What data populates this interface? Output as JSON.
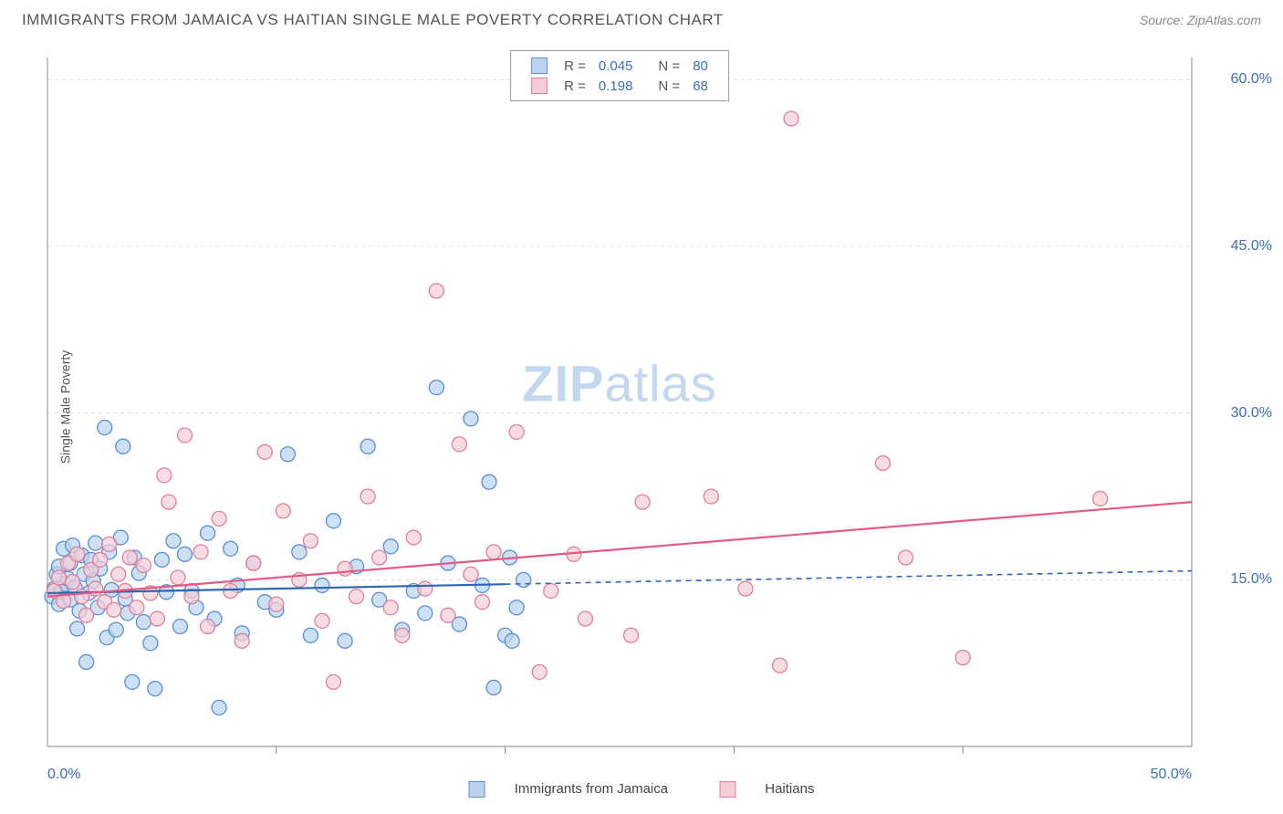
{
  "title": "IMMIGRANTS FROM JAMAICA VS HAITIAN SINGLE MALE POVERTY CORRELATION CHART",
  "source": "Source: ZipAtlas.com",
  "watermark_zip": "ZIP",
  "watermark_atlas": "atlas",
  "ylabel": "Single Male Poverty",
  "chart": {
    "type": "scatter",
    "xlim": [
      0,
      50
    ],
    "ylim": [
      0,
      62
    ],
    "xtick_vals": [
      0,
      50
    ],
    "xtick_labels": [
      "0.0%",
      "50.0%"
    ],
    "xtick_minor": [
      10,
      20,
      30,
      40
    ],
    "ytick_vals": [
      15,
      30,
      45,
      60
    ],
    "ytick_labels": [
      "15.0%",
      "30.0%",
      "45.0%",
      "60.0%"
    ],
    "grid_color": "#dddddd",
    "axis_color": "#888888",
    "marker_radius": 8,
    "marker_stroke_width": 1.3,
    "line_width": 2.2,
    "series": [
      {
        "name": "Immigrants from Jamaica",
        "fill": "#b9d3f0",
        "stroke": "#5a8fd0",
        "line_color": "#2f66b3",
        "R": "0.045",
        "N": "80",
        "trend": {
          "x1": 0,
          "y1": 13.8,
          "x2_solid": 20,
          "y2_solid": 14.6,
          "x2_dash": 50,
          "y2_dash": 15.8
        },
        "points": [
          [
            0.2,
            13.5
          ],
          [
            0.3,
            14.2
          ],
          [
            0.4,
            15.5
          ],
          [
            0.5,
            16.2
          ],
          [
            0.5,
            12.8
          ],
          [
            0.6,
            13.9
          ],
          [
            0.7,
            17.8
          ],
          [
            0.8,
            14.6
          ],
          [
            0.9,
            15.1
          ],
          [
            1.0,
            13.2
          ],
          [
            1.0,
            16.5
          ],
          [
            1.1,
            18.1
          ],
          [
            1.2,
            14.3
          ],
          [
            1.3,
            10.6
          ],
          [
            1.4,
            12.2
          ],
          [
            1.5,
            17.2
          ],
          [
            1.6,
            15.5
          ],
          [
            1.7,
            7.6
          ],
          [
            1.8,
            13.8
          ],
          [
            1.9,
            16.8
          ],
          [
            2.0,
            14.9
          ],
          [
            2.1,
            18.3
          ],
          [
            2.2,
            12.5
          ],
          [
            2.3,
            16.0
          ],
          [
            2.5,
            28.7
          ],
          [
            2.6,
            9.8
          ],
          [
            2.7,
            17.5
          ],
          [
            2.8,
            14.1
          ],
          [
            3.0,
            10.5
          ],
          [
            3.2,
            18.8
          ],
          [
            3.3,
            27.0
          ],
          [
            3.4,
            13.3
          ],
          [
            3.5,
            12.0
          ],
          [
            3.7,
            5.8
          ],
          [
            3.8,
            17.0
          ],
          [
            4.0,
            15.6
          ],
          [
            4.2,
            11.2
          ],
          [
            4.5,
            9.3
          ],
          [
            4.7,
            5.2
          ],
          [
            5.0,
            16.8
          ],
          [
            5.2,
            13.9
          ],
          [
            5.5,
            18.5
          ],
          [
            5.8,
            10.8
          ],
          [
            6.0,
            17.3
          ],
          [
            6.3,
            14.0
          ],
          [
            6.5,
            12.5
          ],
          [
            7.0,
            19.2
          ],
          [
            7.3,
            11.5
          ],
          [
            7.5,
            3.5
          ],
          [
            8.0,
            17.8
          ],
          [
            8.3,
            14.5
          ],
          [
            8.5,
            10.2
          ],
          [
            9.0,
            16.5
          ],
          [
            9.5,
            13.0
          ],
          [
            10.0,
            12.3
          ],
          [
            10.5,
            26.3
          ],
          [
            11.0,
            17.5
          ],
          [
            11.5,
            10.0
          ],
          [
            12,
            14.5
          ],
          [
            12.5,
            20.3
          ],
          [
            13,
            9.5
          ],
          [
            13.5,
            16.2
          ],
          [
            14,
            27.0
          ],
          [
            14.5,
            13.2
          ],
          [
            15,
            18.0
          ],
          [
            15.5,
            10.5
          ],
          [
            16,
            14.0
          ],
          [
            16.5,
            12.0
          ],
          [
            17,
            32.3
          ],
          [
            17.5,
            16.5
          ],
          [
            18,
            11.0
          ],
          [
            18.5,
            29.5
          ],
          [
            19,
            14.5
          ],
          [
            19.3,
            23.8
          ],
          [
            19.5,
            5.3
          ],
          [
            20,
            10.0
          ],
          [
            20.2,
            17.0
          ],
          [
            20.3,
            9.5
          ],
          [
            20.5,
            12.5
          ],
          [
            20.8,
            15.0
          ]
        ]
      },
      {
        "name": "Haitians",
        "fill": "#f5cdd7",
        "stroke": "#e07f9a",
        "line_color": "#e35a82",
        "R": "0.198",
        "N": "68",
        "trend": {
          "x1": 0,
          "y1": 13.5,
          "x2_solid": 50,
          "y2_solid": 22.0,
          "x2_dash": 50,
          "y2_dash": 22.0
        },
        "points": [
          [
            0.3,
            14.0
          ],
          [
            0.5,
            15.2
          ],
          [
            0.7,
            13.1
          ],
          [
            0.9,
            16.5
          ],
          [
            1.1,
            14.8
          ],
          [
            1.3,
            17.3
          ],
          [
            1.5,
            13.5
          ],
          [
            1.7,
            11.8
          ],
          [
            1.9,
            15.9
          ],
          [
            2.1,
            14.2
          ],
          [
            2.3,
            16.8
          ],
          [
            2.5,
            13.0
          ],
          [
            2.7,
            18.2
          ],
          [
            2.9,
            12.3
          ],
          [
            3.1,
            15.5
          ],
          [
            3.4,
            14.0
          ],
          [
            3.6,
            17.0
          ],
          [
            3.9,
            12.5
          ],
          [
            4.2,
            16.3
          ],
          [
            4.5,
            13.8
          ],
          [
            4.8,
            11.5
          ],
          [
            5.1,
            24.4
          ],
          [
            5.3,
            22.0
          ],
          [
            5.7,
            15.2
          ],
          [
            6.0,
            28.0
          ],
          [
            6.3,
            13.5
          ],
          [
            6.7,
            17.5
          ],
          [
            7.0,
            10.8
          ],
          [
            7.5,
            20.5
          ],
          [
            8.0,
            14.0
          ],
          [
            8.5,
            9.5
          ],
          [
            9.0,
            16.5
          ],
          [
            9.5,
            26.5
          ],
          [
            10.0,
            12.8
          ],
          [
            10.3,
            21.2
          ],
          [
            11.0,
            15.0
          ],
          [
            11.5,
            18.5
          ],
          [
            12.0,
            11.3
          ],
          [
            12.5,
            5.8
          ],
          [
            13.0,
            16.0
          ],
          [
            13.5,
            13.5
          ],
          [
            14.0,
            22.5
          ],
          [
            14.5,
            17.0
          ],
          [
            15.0,
            12.5
          ],
          [
            15.5,
            10.0
          ],
          [
            16.0,
            18.8
          ],
          [
            16.5,
            14.2
          ],
          [
            17.0,
            41.0
          ],
          [
            17.5,
            11.8
          ],
          [
            18.0,
            27.2
          ],
          [
            18.5,
            15.5
          ],
          [
            19.0,
            13.0
          ],
          [
            19.5,
            17.5
          ],
          [
            20.5,
            28.3
          ],
          [
            21.5,
            6.7
          ],
          [
            22.0,
            14.0
          ],
          [
            23.0,
            17.3
          ],
          [
            23.5,
            11.5
          ],
          [
            25.5,
            10.0
          ],
          [
            26.0,
            22.0
          ],
          [
            29.0,
            22.5
          ],
          [
            30.5,
            14.2
          ],
          [
            32.0,
            7.3
          ],
          [
            32.5,
            56.5
          ],
          [
            36.5,
            25.5
          ],
          [
            37.5,
            17.0
          ],
          [
            40.0,
            8.0
          ],
          [
            46.0,
            22.3
          ]
        ]
      }
    ]
  }
}
